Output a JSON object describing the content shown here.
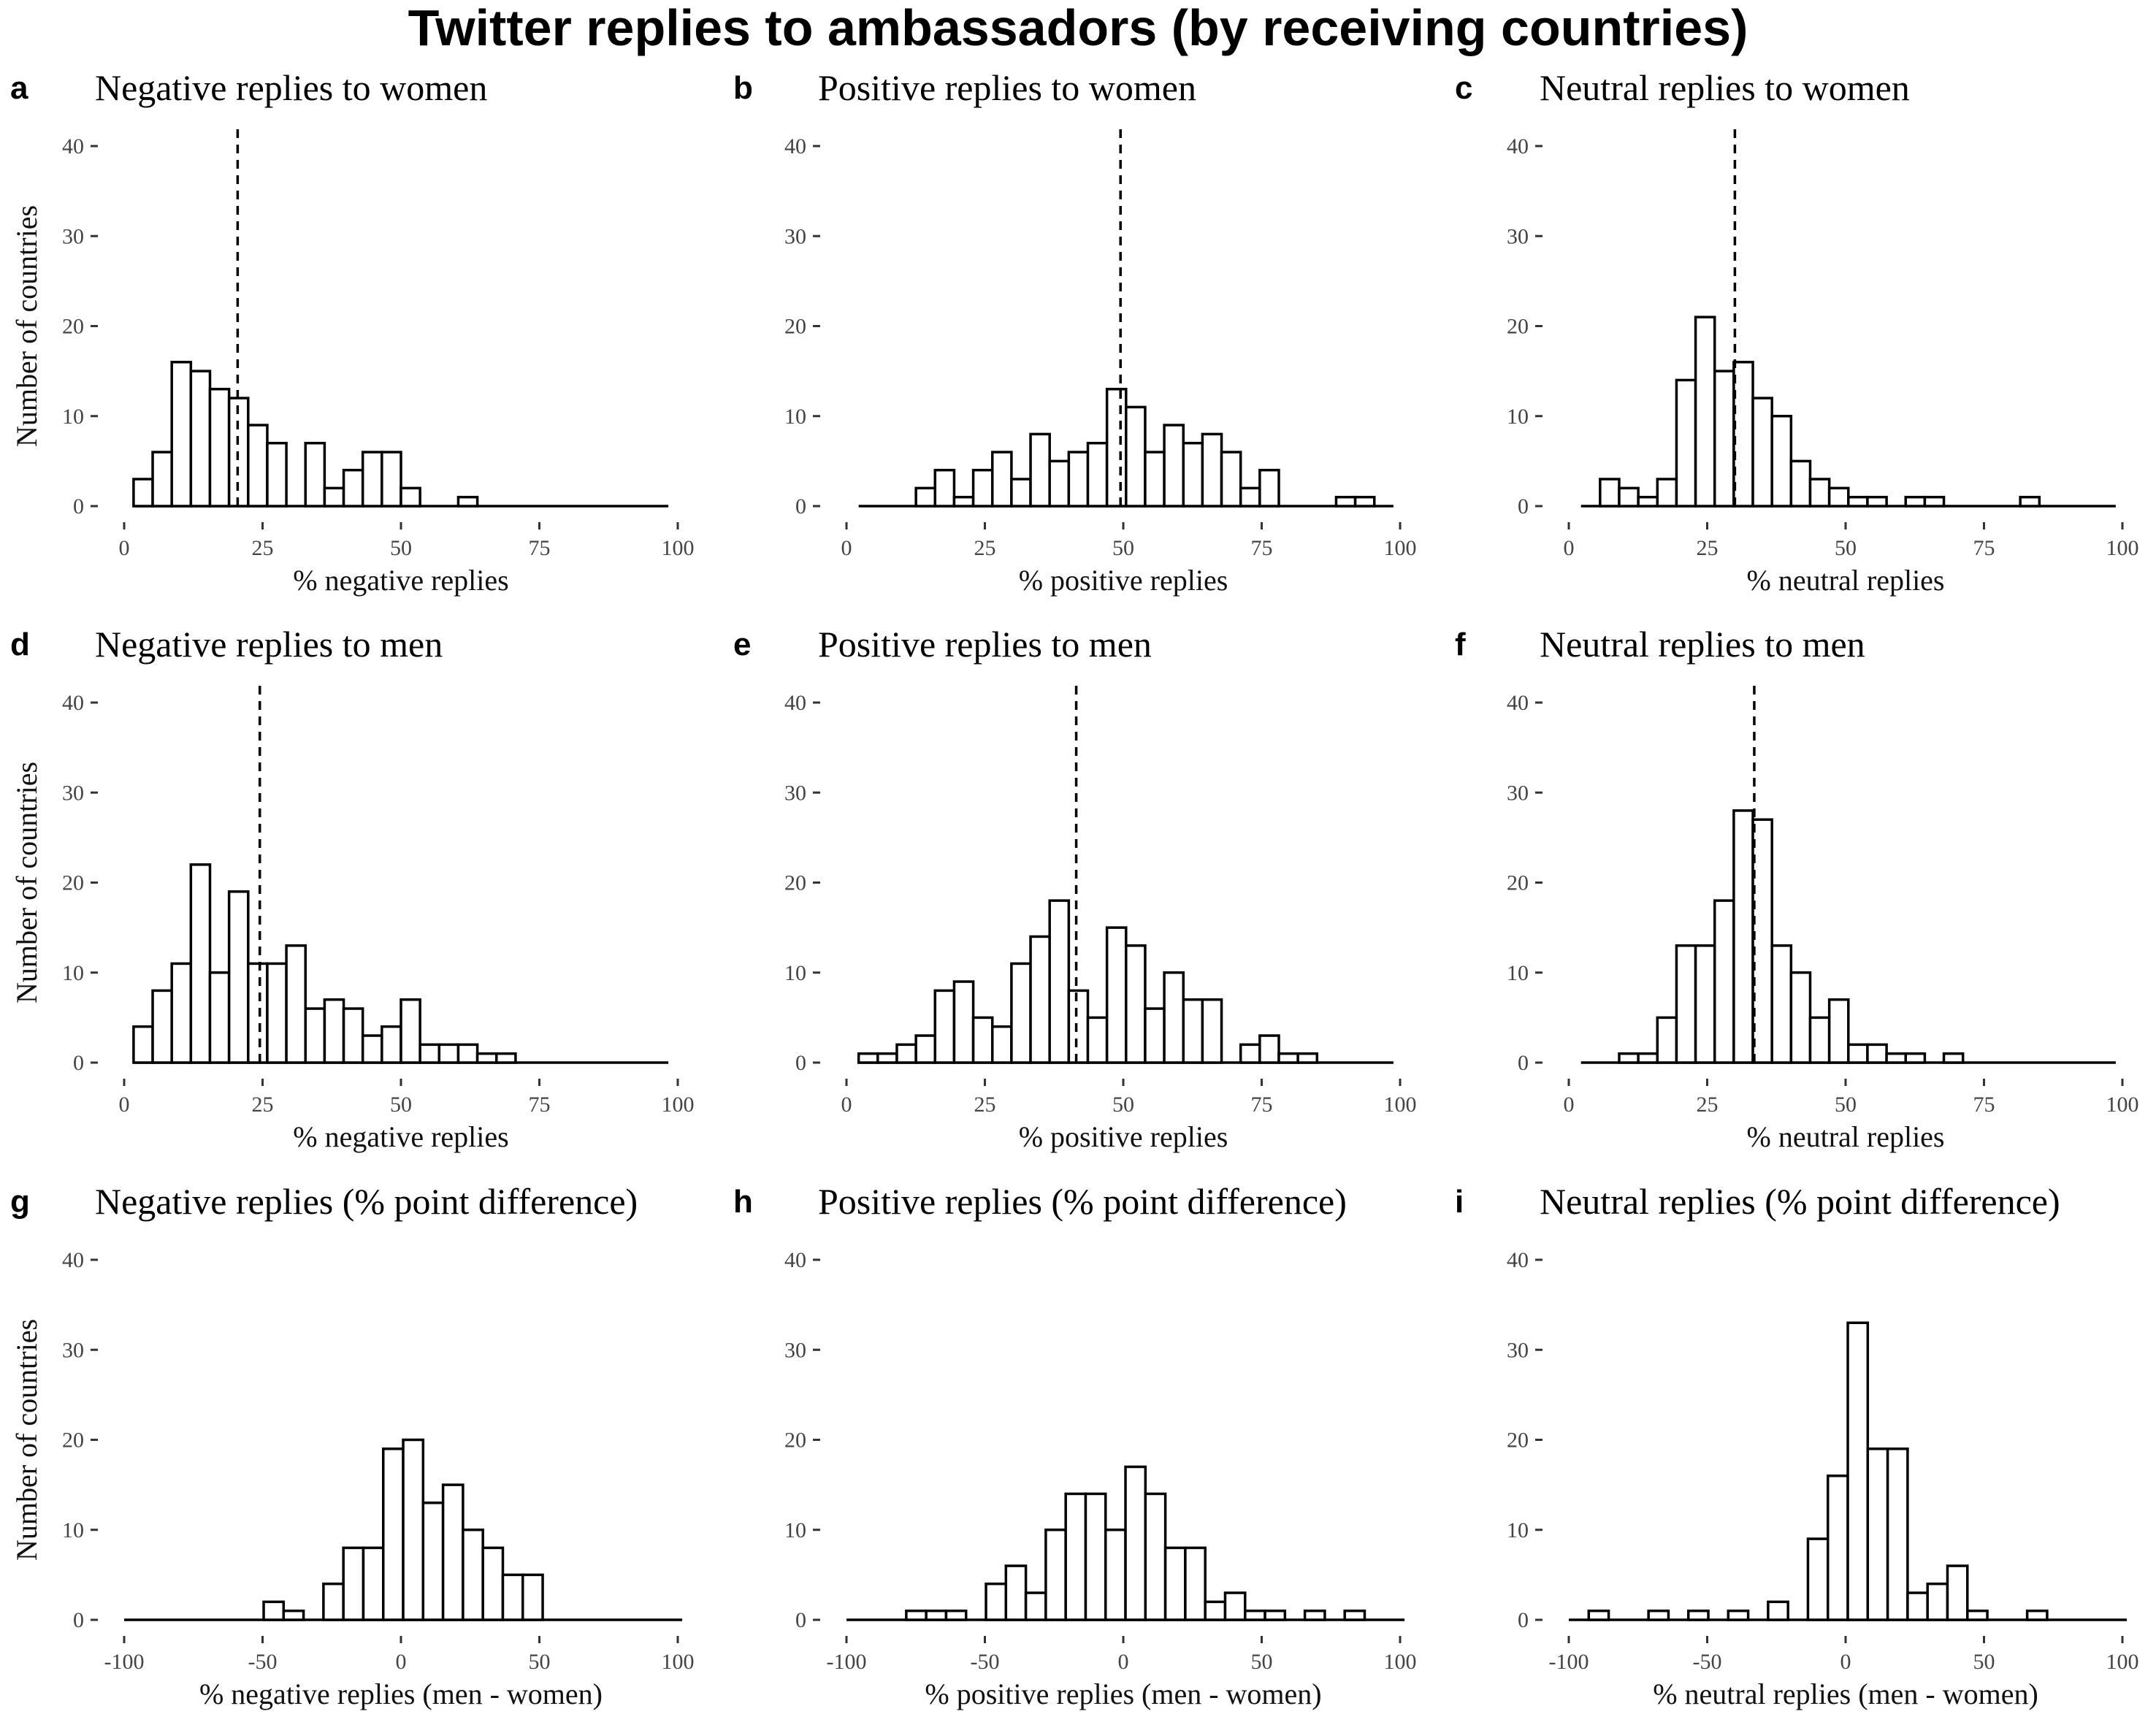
{
  "figure": {
    "title": "Twitter replies to ambassadors (by receiving countries)"
  },
  "chart_data": [
    {
      "panel": "a",
      "type": "bar",
      "title": "Negative replies to women",
      "xlabel": "% negative replies",
      "ylabel": "Number of countries",
      "xlim": [
        0,
        100
      ],
      "ylim": [
        0,
        40
      ],
      "xticks": [
        0,
        25,
        50,
        75,
        100
      ],
      "xtick_labels": [
        "0",
        "25",
        "50",
        "75",
        "100"
      ],
      "yticks": [
        0,
        10,
        20,
        30,
        40
      ],
      "ytick_labels": [
        "0",
        "10",
        "20",
        "30",
        "40"
      ],
      "bins_start": 1.7,
      "bin_width": 3.45,
      "values": [
        3,
        6,
        16,
        15,
        13,
        12,
        9,
        7,
        0,
        7,
        2,
        4,
        6,
        6,
        2,
        0,
        0,
        1,
        0,
        0,
        0,
        0,
        0,
        0,
        0,
        0,
        0,
        0
      ],
      "mean": 20.5
    },
    {
      "panel": "b",
      "type": "bar",
      "title": "Positive replies to women",
      "xlabel": "% positive replies",
      "ylabel": "",
      "xlim": [
        0,
        100
      ],
      "ylim": [
        0,
        40
      ],
      "xticks": [
        0,
        25,
        50,
        75,
        100
      ],
      "xtick_labels": [
        "0",
        "25",
        "50",
        "75",
        "100"
      ],
      "yticks": [
        0,
        10,
        20,
        30,
        40
      ],
      "ytick_labels": [
        "0",
        "10",
        "20",
        "30",
        "40"
      ],
      "bins_start": 2.2,
      "bin_width": 3.45,
      "values": [
        0,
        0,
        0,
        2,
        4,
        1,
        4,
        6,
        3,
        8,
        5,
        6,
        7,
        13,
        11,
        6,
        9,
        7,
        8,
        6,
        2,
        4,
        0,
        0,
        0,
        1,
        1,
        0
      ],
      "mean": 49.5
    },
    {
      "panel": "c",
      "type": "bar",
      "title": "Neutral replies to women",
      "xlabel": "% neutral replies",
      "ylabel": "",
      "xlim": [
        0,
        100
      ],
      "ylim": [
        0,
        40
      ],
      "xticks": [
        0,
        25,
        50,
        75,
        100
      ],
      "xtick_labels": [
        "0",
        "25",
        "50",
        "75",
        "100"
      ],
      "yticks": [
        0,
        10,
        20,
        30,
        40
      ],
      "ytick_labels": [
        "0",
        "10",
        "20",
        "30",
        "40"
      ],
      "bins_start": 2.2,
      "bin_width": 3.45,
      "values": [
        0,
        3,
        2,
        1,
        3,
        14,
        21,
        15,
        16,
        12,
        10,
        5,
        3,
        2,
        1,
        1,
        0,
        1,
        1,
        0,
        0,
        0,
        0,
        1,
        0,
        0,
        0,
        0
      ],
      "mean": 30.0
    },
    {
      "panel": "d",
      "type": "bar",
      "title": "Negative replies to men",
      "xlabel": "% negative replies",
      "ylabel": "Number of countries",
      "xlim": [
        0,
        100
      ],
      "ylim": [
        0,
        40
      ],
      "xticks": [
        0,
        25,
        50,
        75,
        100
      ],
      "xtick_labels": [
        "0",
        "25",
        "50",
        "75",
        "100"
      ],
      "yticks": [
        0,
        10,
        20,
        30,
        40
      ],
      "ytick_labels": [
        "0",
        "10",
        "20",
        "30",
        "40"
      ],
      "bins_start": 1.7,
      "bin_width": 3.45,
      "values": [
        4,
        8,
        11,
        22,
        10,
        19,
        11,
        11,
        13,
        6,
        7,
        6,
        3,
        4,
        7,
        2,
        2,
        2,
        1,
        1,
        0,
        0,
        0,
        0,
        0,
        0,
        0,
        0
      ],
      "mean": 24.5
    },
    {
      "panel": "e",
      "type": "bar",
      "title": "Positive replies to men",
      "xlabel": "% positive replies",
      "ylabel": "",
      "xlim": [
        0,
        100
      ],
      "ylim": [
        0,
        40
      ],
      "xticks": [
        0,
        25,
        50,
        75,
        100
      ],
      "xtick_labels": [
        "0",
        "25",
        "50",
        "75",
        "100"
      ],
      "yticks": [
        0,
        10,
        20,
        30,
        40
      ],
      "ytick_labels": [
        "0",
        "10",
        "20",
        "30",
        "40"
      ],
      "bins_start": 2.2,
      "bin_width": 3.45,
      "values": [
        1,
        1,
        2,
        3,
        8,
        9,
        5,
        4,
        11,
        14,
        18,
        8,
        5,
        15,
        13,
        6,
        10,
        7,
        7,
        0,
        2,
        3,
        1,
        1,
        0,
        0,
        0,
        0
      ],
      "mean": 41.5
    },
    {
      "panel": "f",
      "type": "bar",
      "title": "Neutral replies to men",
      "xlabel": "% neutral replies",
      "ylabel": "",
      "xlim": [
        0,
        100
      ],
      "ylim": [
        0,
        40
      ],
      "xticks": [
        0,
        25,
        50,
        75,
        100
      ],
      "xtick_labels": [
        "0",
        "25",
        "50",
        "75",
        "100"
      ],
      "yticks": [
        0,
        10,
        20,
        30,
        40
      ],
      "ytick_labels": [
        "0",
        "10",
        "20",
        "30",
        "40"
      ],
      "bins_start": 2.2,
      "bin_width": 3.45,
      "values": [
        0,
        0,
        1,
        1,
        5,
        13,
        13,
        18,
        28,
        27,
        13,
        10,
        5,
        7,
        2,
        2,
        1,
        1,
        0,
        1,
        0,
        0,
        0,
        0,
        0,
        0,
        0,
        0
      ],
      "mean": 33.5
    },
    {
      "panel": "g",
      "type": "bar",
      "title": "Negative replies (% point difference)",
      "xlabel": "% negative replies (men - women)",
      "ylabel": "Number of countries",
      "xlim": [
        -100,
        100
      ],
      "ylim": [
        0,
        40
      ],
      "xticks": [
        -100,
        -50,
        0,
        50,
        100
      ],
      "xtick_labels": [
        "-100",
        "-50",
        "0",
        "50",
        "100"
      ],
      "yticks": [
        0,
        10,
        20,
        30,
        40
      ],
      "ytick_labels": [
        "0",
        "10",
        "20",
        "30",
        "40"
      ],
      "bins_start": -100,
      "bin_width": 7.2,
      "values": [
        0,
        0,
        0,
        0,
        0,
        0,
        0,
        2,
        1,
        0,
        4,
        8,
        8,
        19,
        20,
        13,
        15,
        10,
        8,
        5,
        5,
        0,
        0,
        0,
        0,
        0,
        0,
        0
      ],
      "mean": null
    },
    {
      "panel": "h",
      "type": "bar",
      "title": "Positive replies (% point difference)",
      "xlabel": "% positive replies (men - women)",
      "ylabel": "",
      "xlim": [
        -100,
        100
      ],
      "ylim": [
        0,
        40
      ],
      "xticks": [
        -100,
        -50,
        0,
        50,
        100
      ],
      "xtick_labels": [
        "-100",
        "-50",
        "0",
        "50",
        "100"
      ],
      "yticks": [
        0,
        10,
        20,
        30,
        40
      ],
      "ytick_labels": [
        "0",
        "10",
        "20",
        "30",
        "40"
      ],
      "bins_start": -100,
      "bin_width": 7.2,
      "values": [
        0,
        0,
        0,
        1,
        1,
        1,
        0,
        4,
        6,
        3,
        10,
        14,
        14,
        10,
        17,
        14,
        8,
        8,
        2,
        3,
        1,
        1,
        0,
        1,
        0,
        1,
        0,
        0
      ],
      "mean": null
    },
    {
      "panel": "i",
      "type": "bar",
      "title": "Neutral replies (% point difference)",
      "xlabel": "% neutral replies (men - women)",
      "ylabel": "",
      "xlim": [
        -100,
        100
      ],
      "ylim": [
        0,
        40
      ],
      "xticks": [
        -100,
        -50,
        0,
        50,
        100
      ],
      "xtick_labels": [
        "-100",
        "-50",
        "0",
        "50",
        "100"
      ],
      "yticks": [
        0,
        10,
        20,
        30,
        40
      ],
      "ytick_labels": [
        "0",
        "10",
        "20",
        "30",
        "40"
      ],
      "bins_start": -100,
      "bin_width": 7.2,
      "values": [
        0,
        1,
        0,
        0,
        1,
        0,
        1,
        0,
        1,
        0,
        2,
        0,
        9,
        16,
        33,
        19,
        19,
        3,
        4,
        6,
        1,
        0,
        0,
        1,
        0,
        0,
        0,
        0
      ],
      "mean": null
    }
  ]
}
